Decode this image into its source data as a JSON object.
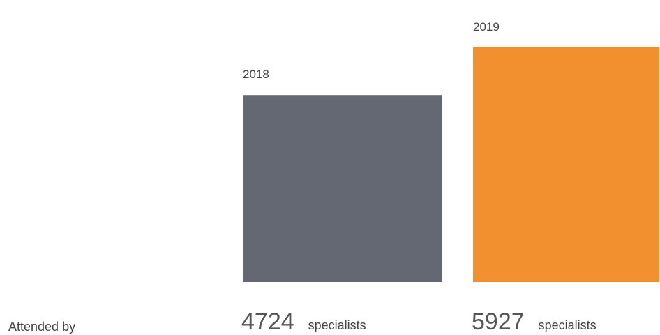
{
  "chart_data": {
    "type": "bar",
    "label": "Attended by",
    "unit": "specialists",
    "categories": [
      "2018",
      "2019"
    ],
    "values": [
      4724,
      5927
    ],
    "colors": [
      "#646873",
      "#f28f2e"
    ]
  }
}
